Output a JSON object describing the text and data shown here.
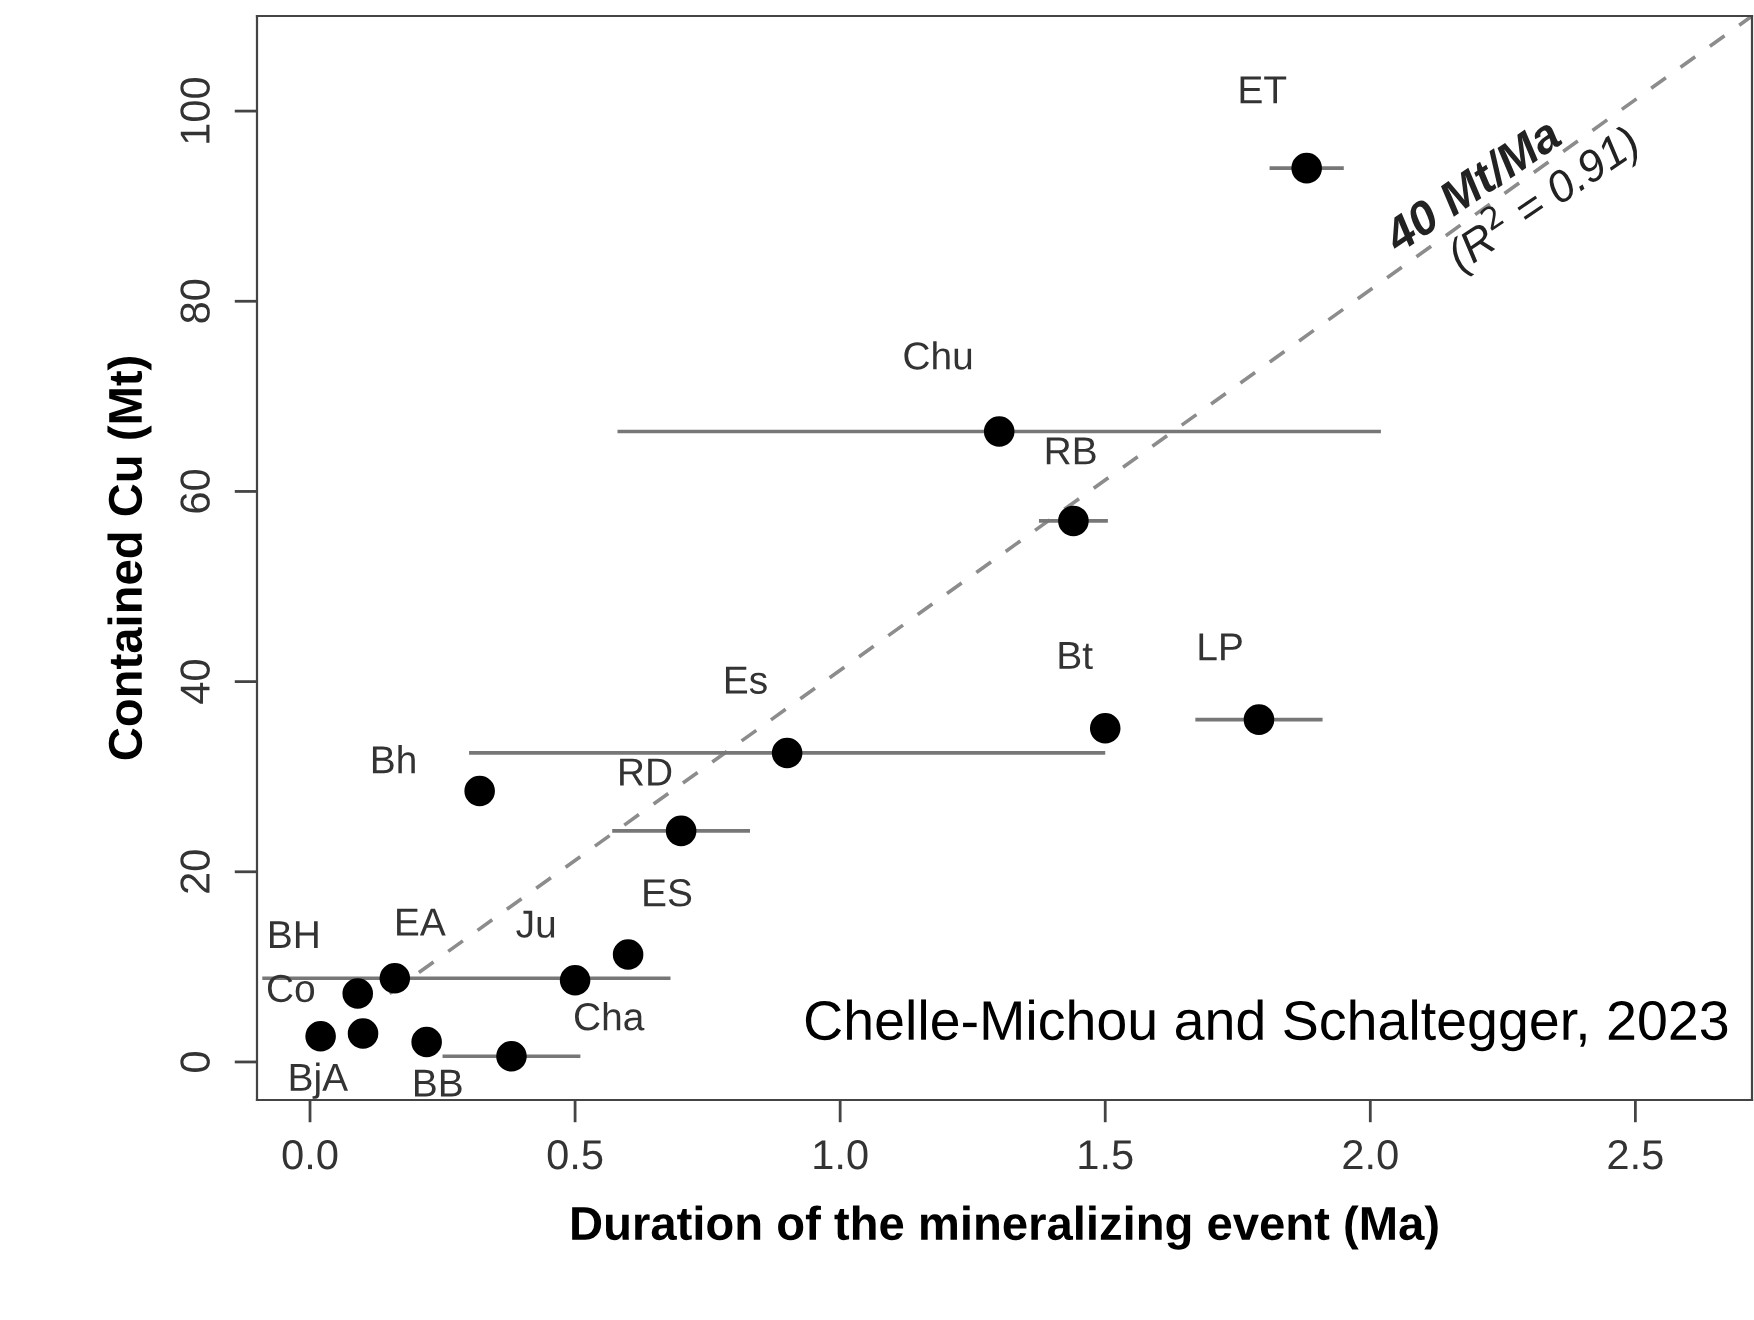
{
  "chart_data": {
    "type": "scatter",
    "xlabel": "Duration of the mineralizing event (Ma)",
    "ylabel": "Contained Cu (Mt)",
    "xlim": [
      -0.1,
      2.72
    ],
    "ylim": [
      -4,
      110
    ],
    "xticks": [
      {
        "value": 0,
        "label": "0.0"
      },
      0.5,
      {
        "value": 1,
        "label": "1.0"
      },
      1.5,
      {
        "value": 2,
        "label": "2.0"
      },
      2.5
    ],
    "yticks": [
      0,
      20,
      40,
      60,
      80,
      100
    ],
    "grid": false,
    "legend": false,
    "series": [
      {
        "color": "#000000",
        "marker": "circle",
        "x": [
          1.88,
          1.3,
          1.44,
          1.5,
          1.79,
          0.9,
          0.32,
          0.7,
          0.6,
          0.5,
          0.16,
          0.09,
          0.1,
          0.02,
          0.22,
          0.38
        ],
        "values": [
          94,
          66.3,
          56.9,
          35.1,
          36.0,
          32.5,
          28.5,
          24.3,
          11.3,
          8.6,
          8.8,
          7.2,
          3.0,
          2.7,
          2.1,
          0.6
        ],
        "xerrors": [
          0.07,
          0.72,
          0.065,
          null,
          0.12,
          0.6,
          null,
          0.13,
          null,
          null,
          [
            -0.09,
            0.68
          ],
          null,
          null,
          null,
          null,
          0.13
        ]
      },
      {
        "type": "line",
        "color": "#8c8c8c",
        "line_style": "dashed",
        "marker": "none",
        "x": [
          0.15,
          2.72
        ],
        "values": [
          7.2,
          110
        ]
      }
    ],
    "annotations": [
      {
        "text": "ET",
        "x": 1.88,
        "y": 94
      },
      {
        "text": "Chu",
        "x": 1.3,
        "y": 66.3
      },
      {
        "text": "RB",
        "x": 1.44,
        "y": 56.9
      },
      {
        "text": "Bt",
        "x": 1.5,
        "y": 35.1
      },
      {
        "text": "LP",
        "x": 1.79,
        "y": 36.0
      },
      {
        "text": "Es",
        "x": 0.9,
        "y": 32.5
      },
      {
        "text": "Bh",
        "x": 0.32,
        "y": 28.5
      },
      {
        "text": "RD",
        "x": 0.7,
        "y": 24.3
      },
      {
        "text": "ES",
        "x": 0.6,
        "y": 11.3
      },
      {
        "text": "Ju",
        "x": 0.5,
        "y": 8.6
      },
      {
        "text": "EA",
        "x": 0.16,
        "y": 8.8
      },
      {
        "text": "BH",
        "x": 0.09,
        "y": 7.2
      },
      {
        "text": "Co",
        "x": 0.1,
        "y": 3.0
      },
      {
        "text": "BjA",
        "x": 0.02,
        "y": 2.7
      },
      {
        "text": "BB",
        "x": 0.22,
        "y": 2.1
      },
      {
        "text": "Cha",
        "x": 0.38,
        "y": 0.6
      },
      {
        "text": "40 Mt/Ma",
        "x": 2.22,
        "y": 90
      },
      {
        "text": "(R$^{2}$ = 0.91)",
        "x": 2.3,
        "y": 93
      },
      "Chelle-Michou and Schaltegger, 2023"
    ]
  }
}
